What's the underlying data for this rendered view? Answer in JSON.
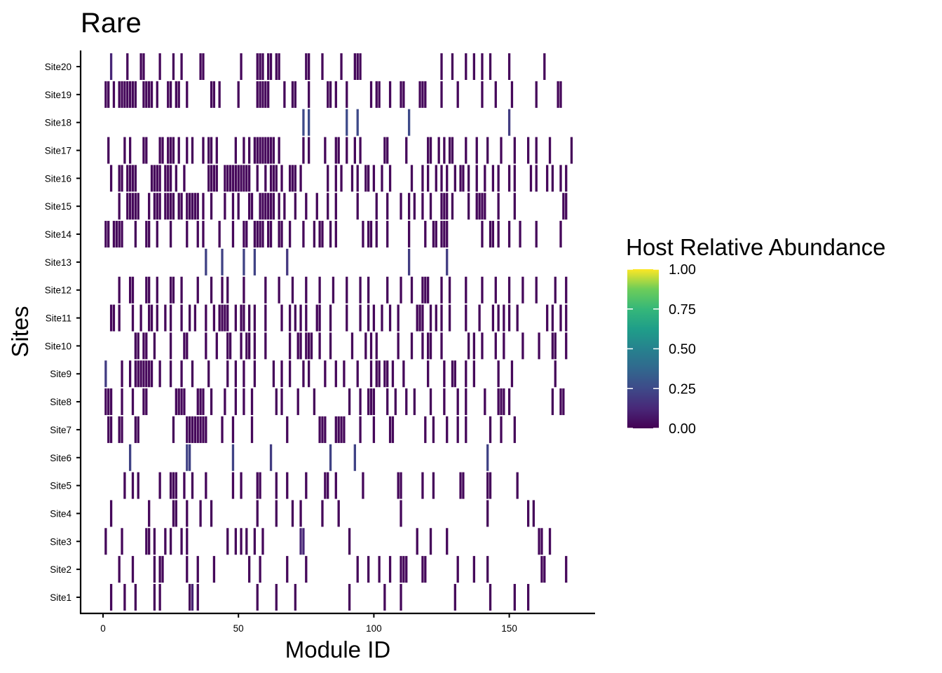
{
  "chart_data": {
    "type": "heatmap",
    "title": "Rare",
    "xlabel": "Module ID",
    "ylabel": "Sites",
    "xlim": [
      -7,
      182
    ],
    "x_ticks": [
      0,
      50,
      100,
      150
    ],
    "y_categories": [
      "Site1",
      "Site2",
      "Site3",
      "Site4",
      "Site5",
      "Site6",
      "Site7",
      "Site8",
      "Site9",
      "Site10",
      "Site11",
      "Site12",
      "Site13",
      "Site14",
      "Site15",
      "Site16",
      "Site17",
      "Site18",
      "Site19",
      "Site20"
    ],
    "color_scale": {
      "name": "Host Relative Abundance",
      "palette": "viridis",
      "range": [
        0,
        1
      ],
      "ticks": [
        "0.00",
        "0.25",
        "0.50",
        "0.75",
        "1.00"
      ],
      "colors": [
        "#440154",
        "#3B528B",
        "#21908C",
        "#5DC863",
        "#FDE725"
      ]
    },
    "cell_default_value": 0.02,
    "sites": {
      "Site1": {
        "modules": [
          3,
          8,
          12,
          19,
          21,
          32,
          33,
          35,
          57,
          64,
          71,
          91,
          104,
          110,
          130,
          143,
          152,
          157
        ]
      },
      "Site2": {
        "modules": [
          6,
          11,
          19,
          21,
          22,
          31,
          35,
          41,
          54,
          58,
          68,
          75,
          94,
          98,
          102,
          106,
          110,
          111,
          112,
          118,
          119,
          131,
          137,
          142,
          162,
          163,
          171
        ]
      },
      "Site3": {
        "modules": [
          1,
          7,
          16,
          17,
          19,
          23,
          25,
          29,
          31,
          46,
          49,
          51,
          53,
          56,
          59,
          73,
          74,
          91,
          116,
          121,
          127,
          161,
          162,
          165
        ]
      },
      "Site4": {
        "modules": [
          3,
          17,
          26,
          27,
          31,
          36,
          40,
          57,
          64,
          70,
          73,
          81,
          87,
          110,
          142,
          157,
          159
        ]
      },
      "Site5": {
        "modules": [
          8,
          11,
          13,
          21,
          25,
          26,
          27,
          30,
          33,
          38,
          48,
          51,
          57,
          58,
          64,
          68,
          75,
          82,
          83,
          86,
          96,
          109,
          110,
          118,
          122,
          132,
          133,
          142,
          143,
          153
        ]
      },
      "Site6": {
        "modules": [
          10,
          31,
          32,
          48,
          62,
          84,
          93,
          142
        ]
      },
      "Site7": {
        "modules": [
          2,
          3,
          6,
          7,
          12,
          13,
          26,
          31,
          32,
          33,
          34,
          35,
          36,
          37,
          38,
          44,
          48,
          55,
          68,
          80,
          81,
          82,
          86,
          87,
          88,
          89,
          95,
          100,
          106,
          107,
          119,
          122,
          127,
          131,
          134,
          143,
          147,
          152
        ]
      },
      "Site8": {
        "modules": [
          1,
          2,
          3,
          7,
          11,
          15,
          16,
          27,
          28,
          29,
          30,
          35,
          36,
          37,
          40,
          45,
          49,
          52,
          55,
          64,
          66,
          72,
          78,
          91,
          95,
          98,
          99,
          100,
          105,
          108,
          112,
          115,
          121,
          126,
          131,
          134,
          141,
          146,
          147,
          148,
          150,
          166,
          169,
          170
        ]
      },
      "Site9": {
        "modules": [
          1,
          7,
          10,
          12,
          13,
          14,
          15,
          16,
          17,
          18,
          21,
          25,
          29,
          33,
          39,
          46,
          49,
          52,
          56,
          63,
          66,
          69,
          74,
          76,
          82,
          86,
          89,
          94,
          99,
          101,
          102,
          104,
          105,
          107,
          111,
          120,
          126,
          129,
          130,
          134,
          137,
          146,
          151,
          167
        ]
      },
      "Site10": {
        "modules": [
          12,
          13,
          15,
          16,
          19,
          25,
          30,
          31,
          38,
          42,
          46,
          47,
          51,
          53,
          54,
          56,
          60,
          69,
          72,
          73,
          75,
          76,
          77,
          80,
          84,
          92,
          97,
          99,
          101,
          109,
          114,
          118,
          120,
          121,
          125,
          135,
          137,
          140,
          145,
          148,
          155,
          161,
          166,
          167,
          171
        ]
      },
      "Site11": {
        "modules": [
          3,
          4,
          6,
          11,
          14,
          17,
          18,
          20,
          23,
          25,
          29,
          32,
          34,
          38,
          41,
          43,
          44,
          45,
          46,
          49,
          51,
          52,
          54,
          56,
          60,
          66,
          69,
          71,
          73,
          75,
          79,
          80,
          84,
          90,
          95,
          98,
          100,
          103,
          106,
          109,
          116,
          117,
          118,
          121,
          123,
          125,
          128,
          134,
          139,
          144,
          146,
          148,
          150,
          153,
          164,
          166,
          169,
          171
        ]
      },
      "Site12": {
        "modules": [
          6,
          10,
          11,
          16,
          17,
          20,
          25,
          26,
          29,
          35,
          40,
          44,
          46,
          52,
          60,
          65,
          70,
          75,
          80,
          85,
          90,
          95,
          98,
          105,
          110,
          114,
          118,
          119,
          120,
          125,
          128,
          134,
          140,
          145,
          150,
          155,
          160,
          167,
          171
        ]
      },
      "Site13": {
        "modules": [
          38,
          44,
          52,
          56,
          68,
          113,
          127
        ]
      },
      "Site14": {
        "modules": [
          1,
          2,
          4,
          5,
          6,
          7,
          12,
          16,
          17,
          20,
          25,
          31,
          35,
          37,
          43,
          48,
          52,
          53,
          56,
          57,
          58,
          59,
          61,
          62,
          65,
          66,
          69,
          74,
          78,
          80,
          81,
          84,
          86,
          96,
          98,
          99,
          101,
          105,
          113,
          119,
          122,
          123,
          125,
          126,
          127,
          140,
          143,
          144,
          146,
          150,
          154,
          160,
          169
        ]
      },
      "Site15": {
        "modules": [
          6,
          9,
          10,
          11,
          12,
          13,
          17,
          19,
          20,
          21,
          23,
          24,
          25,
          26,
          28,
          29,
          31,
          32,
          33,
          34,
          35,
          37,
          40,
          45,
          48,
          50,
          54,
          55,
          58,
          59,
          60,
          61,
          62,
          63,
          65,
          67,
          71,
          75,
          79,
          83,
          86,
          94,
          101,
          105,
          110,
          113,
          115,
          118,
          121,
          125,
          126,
          127,
          129,
          135,
          138,
          139,
          140,
          141,
          146,
          152,
          170,
          171
        ]
      },
      "Site16": {
        "modules": [
          3,
          6,
          7,
          9,
          10,
          11,
          12,
          18,
          19,
          20,
          21,
          23,
          24,
          25,
          27,
          30,
          39,
          40,
          41,
          42,
          45,
          46,
          47,
          48,
          49,
          50,
          51,
          52,
          53,
          54,
          57,
          60,
          62,
          63,
          64,
          66,
          69,
          70,
          71,
          73,
          83,
          86,
          88,
          92,
          94,
          97,
          98,
          100,
          103,
          106,
          114,
          118,
          120,
          123,
          125,
          127,
          130,
          132,
          133,
          135,
          138,
          141,
          144,
          146,
          150,
          152,
          158,
          160,
          164,
          166,
          169,
          171
        ]
      },
      "Site17": {
        "modules": [
          2,
          8,
          10,
          15,
          16,
          21,
          22,
          24,
          25,
          26,
          28,
          31,
          33,
          37,
          39,
          40,
          42,
          49,
          52,
          54,
          56,
          57,
          58,
          59,
          60,
          61,
          62,
          63,
          65,
          74,
          76,
          82,
          86,
          87,
          90,
          93,
          95,
          104,
          105,
          112,
          120,
          121,
          124,
          126,
          128,
          129,
          134,
          138,
          142,
          147,
          152,
          157,
          160,
          165,
          173
        ]
      },
      "Site18": {
        "modules": [
          74,
          76,
          90,
          94,
          113,
          150
        ]
      },
      "Site19": {
        "modules": [
          1,
          2,
          4,
          6,
          7,
          8,
          9,
          10,
          11,
          12,
          15,
          16,
          17,
          18,
          20,
          24,
          25,
          27,
          28,
          31,
          40,
          41,
          43,
          50,
          57,
          58,
          59,
          60,
          61,
          67,
          70,
          71,
          76,
          83,
          84,
          86,
          90,
          99,
          101,
          102,
          106,
          110,
          111,
          117,
          118,
          119,
          125,
          131,
          140,
          145,
          151,
          160,
          168,
          169
        ]
      },
      "Site20": {
        "modules": [
          3,
          9,
          14,
          15,
          21,
          26,
          29,
          36,
          37,
          51,
          57,
          58,
          59,
          61,
          62,
          64,
          65,
          75,
          76,
          81,
          88,
          93,
          94,
          95,
          125,
          129,
          134,
          137,
          140,
          143,
          150,
          163
        ]
      }
    },
    "highlight_cells": [
      {
        "site": "Site20",
        "module": 3,
        "value": 0.12
      },
      {
        "site": "Site18",
        "module": 74,
        "value": 0.25
      },
      {
        "site": "Site18",
        "module": 76,
        "value": 0.25
      },
      {
        "site": "Site18",
        "module": 90,
        "value": 0.25
      },
      {
        "site": "Site18",
        "module": 94,
        "value": 0.25
      },
      {
        "site": "Site18",
        "module": 113,
        "value": 0.25
      },
      {
        "site": "Site18",
        "module": 150,
        "value": 0.2
      },
      {
        "site": "Site13",
        "module": 38,
        "value": 0.22
      },
      {
        "site": "Site13",
        "module": 44,
        "value": 0.22
      },
      {
        "site": "Site13",
        "module": 52,
        "value": 0.22
      },
      {
        "site": "Site13",
        "module": 56,
        "value": 0.22
      },
      {
        "site": "Site13",
        "module": 68,
        "value": 0.18
      },
      {
        "site": "Site13",
        "module": 113,
        "value": 0.2
      },
      {
        "site": "Site13",
        "module": 127,
        "value": 0.2
      },
      {
        "site": "Site9",
        "module": 1,
        "value": 0.2
      },
      {
        "site": "Site6",
        "module": 10,
        "value": 0.22
      },
      {
        "site": "Site6",
        "module": 31,
        "value": 0.22
      },
      {
        "site": "Site6",
        "module": 32,
        "value": 0.22
      },
      {
        "site": "Site6",
        "module": 48,
        "value": 0.22
      },
      {
        "site": "Site6",
        "module": 62,
        "value": 0.2
      },
      {
        "site": "Site6",
        "module": 84,
        "value": 0.22
      },
      {
        "site": "Site6",
        "module": 93,
        "value": 0.22
      },
      {
        "site": "Site6",
        "module": 142,
        "value": 0.22
      },
      {
        "site": "Site3",
        "module": 73,
        "value": 0.12
      },
      {
        "site": "Site3",
        "module": 74,
        "value": 0.12
      },
      {
        "site": "Site1",
        "module": 33,
        "value": 0.1
      }
    ]
  }
}
